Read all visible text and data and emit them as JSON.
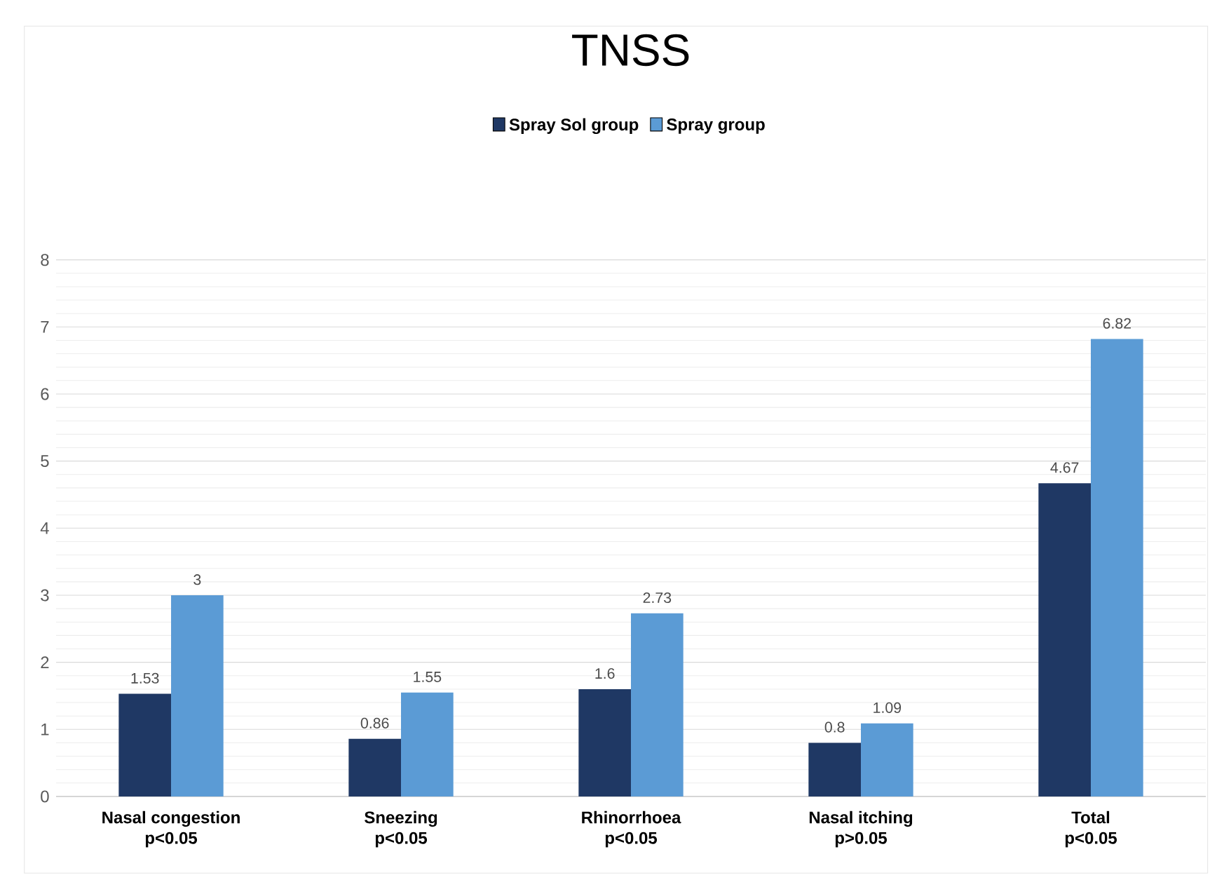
{
  "chart_data": {
    "type": "bar",
    "title": "TNSS",
    "categories": [
      "Nasal congestion",
      "Sneezing",
      "Rhinorrhoea",
      "Nasal itching",
      "Total"
    ],
    "annotations": [
      "p<0.05",
      "p<0.05",
      "p<0.05",
      "p>0.05",
      "p<0.05"
    ],
    "series": [
      {
        "name": "Spray Sol group",
        "color": "#1f3864",
        "values": [
          1.53,
          0.86,
          1.6,
          0.8,
          4.67
        ]
      },
      {
        "name": "Spray group",
        "color": "#5b9bd5",
        "values": [
          3,
          1.55,
          2.73,
          1.09,
          6.82
        ]
      }
    ],
    "ylim": [
      0,
      8
    ],
    "yticks": [
      0,
      1,
      2,
      3,
      4,
      5,
      6,
      7,
      8
    ],
    "grid": true,
    "legend": "top",
    "data_labels": true
  }
}
